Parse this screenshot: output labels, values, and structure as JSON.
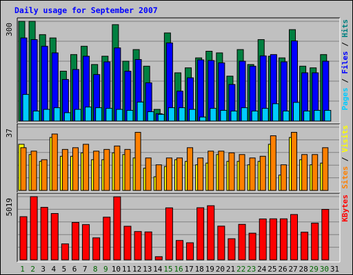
{
  "chart_data": {
    "type": "bar",
    "title": "Daily usage for September 2007",
    "title_color": "#0000ff",
    "categories": [
      "1",
      "2",
      "3",
      "4",
      "5",
      "6",
      "7",
      "8",
      "9",
      "10",
      "11",
      "12",
      "13",
      "14",
      "15",
      "16",
      "17",
      "18",
      "19",
      "20",
      "21",
      "22",
      "23",
      "24",
      "25",
      "26",
      "27",
      "28",
      "29",
      "30",
      "31"
    ],
    "weekend_days": [
      "1",
      "2",
      "8",
      "9",
      "15",
      "16",
      "22",
      "23",
      "29",
      "30"
    ],
    "weekend_color": "#006600",
    "weekday_color": "#000000",
    "panels": [
      {
        "id": "hits",
        "ymax_label": "300",
        "ymax": 300,
        "gridlines": 5,
        "axis_label": [
          {
            "text": "Pages",
            "color": "#00ccff"
          },
          {
            "text": " / ",
            "color": "#000000"
          },
          {
            "text": "Files",
            "color": "#0000ff"
          },
          {
            "text": " / ",
            "color": "#000000"
          },
          {
            "text": "Hits",
            "color": "#008080"
          }
        ],
        "series": [
          {
            "name": "Hits",
            "color": "#008040",
            "values": [
              300,
              300,
              260,
              250,
              150,
              200,
              225,
              170,
              195,
              290,
              180,
              215,
              165,
              35,
              265,
              145,
              160,
              190,
              210,
              205,
              135,
              215,
              170,
              245,
              195,
              190,
              275,
              165,
              160,
              200,
              0
            ]
          },
          {
            "name": "Files",
            "color": "#0000ff",
            "values": [
              250,
              245,
              225,
              205,
              125,
              155,
              195,
              140,
              178,
              220,
              150,
              185,
              115,
              22,
              235,
              90,
              130,
              184,
              182,
              175,
              110,
              180,
              165,
              196,
              200,
              178,
              241,
              145,
              145,
              180,
              0
            ]
          },
          {
            "name": "Pages",
            "color": "#00ccff",
            "values": [
              80,
              30,
              35,
              40,
              25,
              35,
              42,
              40,
              38,
              35,
              32,
              57,
              28,
              20,
              40,
              40,
              35,
              12,
              38,
              32,
              30,
              40,
              30,
              38,
              52,
              30,
              56,
              30,
              32,
              32,
              0
            ]
          }
        ]
      },
      {
        "id": "visits",
        "ymax_label": "37",
        "ymax": 37,
        "gridlines": 5,
        "axis_label": [
          {
            "text": "Sites",
            "color": "#ff8000"
          },
          {
            "text": " / ",
            "color": "#000000"
          },
          {
            "text": "Visits",
            "color": "#ffff00"
          }
        ],
        "series": [
          {
            "name": "Visits",
            "color": "#ffff00",
            "values": [
              27,
              21,
              17,
              31,
              20,
              20,
              22,
              18,
              18,
              22,
              21,
              19,
              13,
              8,
              14,
              18,
              17,
              15,
              16,
              21,
              17,
              17,
              15,
              17,
              27,
              9,
              31,
              18,
              15,
              16,
              0
            ]
          },
          {
            "name": "Sites",
            "color": "#ff8000",
            "values": [
              25,
              23,
              18,
              33,
              24,
              25,
              27,
              23,
              24,
              26,
              24,
              34,
              19,
              15,
              19,
              19,
              25,
              19,
              23,
              23,
              22,
              21,
              19,
              20,
              32,
              15,
              34,
              21,
              21,
              25,
              0
            ]
          }
        ]
      },
      {
        "id": "kbytes",
        "ymax_label": "5019",
        "ymax": 5019,
        "gridlines": 5,
        "axis_label": [
          {
            "text": "KBytes",
            "color": "#ff0000"
          }
        ],
        "series": [
          {
            "name": "KBytes",
            "color": "#ff0000",
            "values": [
              3430,
              5019,
              4170,
              3680,
              1270,
              2970,
              2800,
              1750,
              3390,
              5004,
              2670,
              2250,
              2220,
              257,
              4130,
              1540,
              1360,
              4140,
              4300,
              2680,
              1680,
              2820,
              2120,
              3250,
              3260,
              3260,
              3600,
              2200,
              2920,
              4010,
              0
            ]
          }
        ]
      }
    ]
  }
}
